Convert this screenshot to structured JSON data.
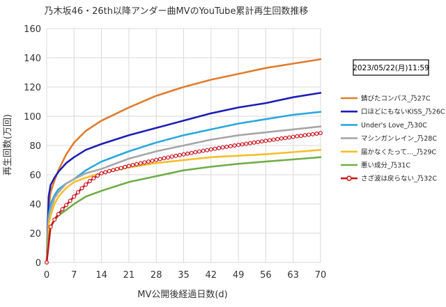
{
  "chart_data": {
    "type": "line",
    "title": "乃木坂46・26th以降アンダー曲MVのYouTube累計再生回数推移",
    "xlabel": "MV公開後経過日数(d)",
    "ylabel": "再生回数(万回)",
    "timestamp": "2023/05/22(月)11:59",
    "xlim": [
      0,
      70
    ],
    "ylim": [
      0,
      160
    ],
    "xticks": [
      0,
      7,
      14,
      21,
      28,
      35,
      42,
      49,
      56,
      63,
      70
    ],
    "yticks": [
      0,
      20,
      40,
      60,
      80,
      100,
      120,
      140,
      160
    ],
    "grid": true,
    "legend_position": "right",
    "series": [
      {
        "name": "錆びたコンパス_乃27C",
        "color": "#E07B2E",
        "x": [
          0,
          0.5,
          1,
          2,
          3,
          5,
          7,
          10,
          14,
          21,
          28,
          35,
          42,
          49,
          56,
          63,
          70
        ],
        "y": [
          0,
          36,
          48,
          56,
          63,
          74,
          82,
          90,
          97,
          106,
          114,
          120,
          125,
          129,
          133,
          136,
          139
        ]
      },
      {
        "name": "口ほどにもないKISS_乃26C",
        "color": "#1E1EB4",
        "x": [
          0,
          0.5,
          1,
          2,
          3,
          5,
          7,
          10,
          14,
          21,
          28,
          35,
          42,
          49,
          56,
          63,
          70
        ],
        "y": [
          0,
          45,
          53,
          58,
          62,
          68,
          72,
          77,
          81,
          87,
          92,
          97,
          102,
          106,
          109,
          113,
          116
        ]
      },
      {
        "name": "Under's Love_乃30C",
        "color": "#2AA8DC",
        "x": [
          0,
          0.5,
          1,
          2,
          3,
          5,
          7,
          10,
          14,
          21,
          28,
          35,
          42,
          49,
          56,
          63,
          70
        ],
        "y": [
          0,
          32,
          40,
          46,
          50,
          54,
          57,
          63,
          69,
          76,
          82,
          87,
          91,
          95,
          98,
          101,
          103
        ]
      },
      {
        "name": "マシンガンレイン_乃28C",
        "color": "#A6A6A6",
        "x": [
          0,
          0.5,
          1,
          2,
          3,
          5,
          7,
          10,
          14,
          21,
          28,
          35,
          42,
          49,
          56,
          63,
          70
        ],
        "y": [
          0,
          28,
          36,
          44,
          48,
          54,
          57,
          61,
          64,
          71,
          76,
          80,
          84,
          87,
          89,
          91,
          93
        ]
      },
      {
        "name": "届かなくたって..._乃29C",
        "color": "#F5BE2A",
        "x": [
          0,
          0.5,
          1,
          2,
          3,
          5,
          7,
          10,
          14,
          21,
          28,
          35,
          42,
          49,
          56,
          63,
          70
        ],
        "y": [
          0,
          26,
          32,
          40,
          45,
          51,
          55,
          58,
          61,
          65,
          68,
          70,
          72,
          73,
          74,
          75.5,
          77
        ]
      },
      {
        "name": "悪い成分_乃31C",
        "color": "#70AD47",
        "x": [
          0,
          0.5,
          1,
          2,
          3,
          5,
          7,
          10,
          14,
          21,
          28,
          35,
          42,
          49,
          56,
          63,
          70
        ],
        "y": [
          0,
          18,
          24,
          29,
          32,
          36,
          40,
          45,
          49,
          55,
          59,
          63,
          65.5,
          67.5,
          69,
          70.5,
          72
        ]
      },
      {
        "name": "さざ波は戻らない_乃32C",
        "color": "#C8161E",
        "markers": true,
        "x": [
          0,
          1,
          2,
          3,
          4,
          5,
          6,
          7,
          8,
          9,
          10,
          11,
          12,
          13,
          14,
          15,
          16,
          17,
          18,
          19,
          20,
          21,
          22,
          23,
          24,
          25,
          26,
          27,
          28,
          29,
          30,
          31,
          32,
          33,
          34,
          35,
          36,
          37,
          38,
          39,
          40,
          41,
          42,
          43,
          44,
          45,
          46,
          47,
          48,
          49,
          50,
          51,
          52,
          53,
          54,
          55,
          56,
          57,
          58,
          59,
          60,
          61,
          62,
          63,
          64,
          65,
          66,
          67,
          68,
          69,
          70
        ],
        "y": [
          0,
          24.4,
          29.3,
          33.1,
          36.4,
          39.3,
          42.2,
          45.1,
          48,
          50.8,
          53.3,
          55.6,
          57.6,
          59.4,
          61,
          61.7,
          62.5,
          63.2,
          63.9,
          64.6,
          65.3,
          66,
          66.6,
          67.2,
          67.8,
          68.4,
          69,
          69.6,
          70.2,
          70.7,
          71.3,
          71.8,
          72.4,
          72.9,
          73.4,
          73.9,
          74.4,
          74.9,
          75.4,
          75.9,
          76.4,
          76.8,
          77.3,
          77.8,
          78.2,
          78.7,
          79.1,
          79.5,
          80,
          80.4,
          80.8,
          81.2,
          81.6,
          82,
          82.4,
          82.8,
          83.2,
          83.6,
          84,
          84.4,
          84.8,
          85.1,
          85.5,
          85.9,
          86.3,
          86.6,
          87,
          87.4,
          87.7,
          88.1,
          88.5
        ]
      }
    ]
  }
}
